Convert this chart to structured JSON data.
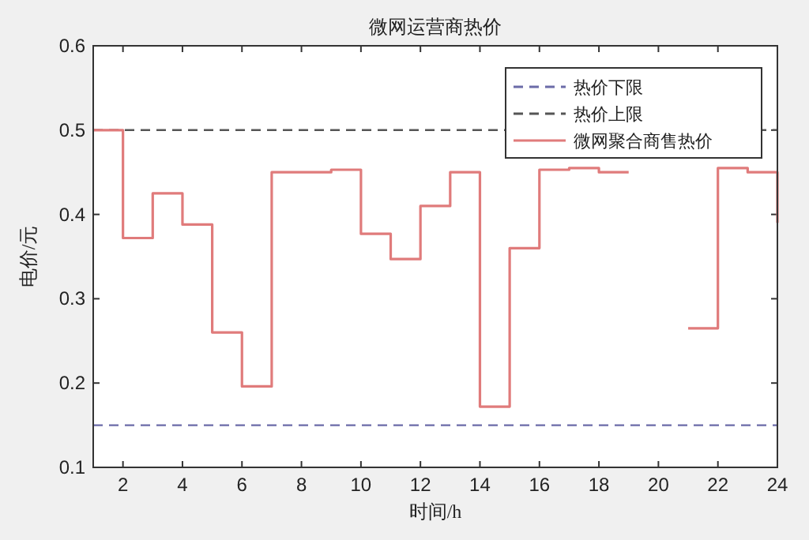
{
  "chart_data": {
    "type": "step",
    "title": "微网运营商热价",
    "xlabel": "时间/h",
    "ylabel": "电价/元",
    "x": [
      1,
      2,
      3,
      4,
      5,
      6,
      7,
      8,
      9,
      10,
      11,
      12,
      13,
      14,
      15,
      16,
      17,
      18,
      19,
      20,
      21,
      22,
      23,
      24
    ],
    "series": [
      {
        "name": "微网聚合商售热价",
        "color": "#e07b7b",
        "values": [
          0.5,
          0.372,
          0.425,
          0.388,
          0.26,
          0.196,
          0.45,
          0.45,
          0.453,
          0.377,
          0.347,
          0.41,
          0.45,
          0.172,
          0.36,
          0.453,
          0.455,
          0.45,
          null,
          null,
          0.265,
          0.455,
          0.45,
          0.39
        ]
      }
    ],
    "ref_lines": [
      {
        "axis": "y",
        "value": 0.15,
        "label": "热价下限",
        "color": "#6b6ba8",
        "line_style": "dashed"
      },
      {
        "axis": "y",
        "value": 0.5,
        "label": "热价上限",
        "color": "#555555",
        "line_style": "dashed"
      }
    ],
    "xlim": [
      1,
      24
    ],
    "xticks": [
      2,
      4,
      6,
      8,
      10,
      12,
      14,
      16,
      18,
      20,
      22,
      24
    ],
    "ylim": [
      0.1,
      0.6
    ],
    "yticks": [
      0.1,
      0.2,
      0.3,
      0.4,
      0.5,
      0.6
    ],
    "grid": false,
    "legend": "top right"
  }
}
